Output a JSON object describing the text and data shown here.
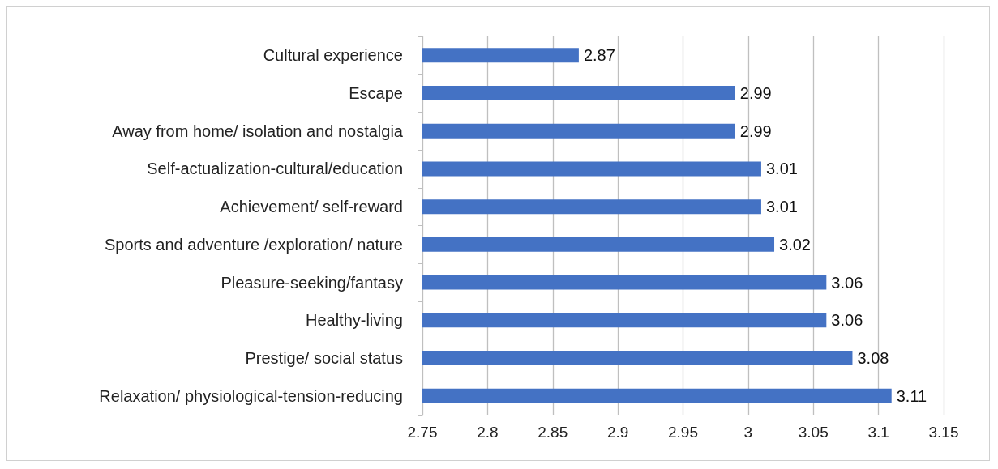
{
  "chart_data": {
    "type": "bar",
    "orientation": "horizontal",
    "categories": [
      "Cultural experience",
      "Escape",
      "Away from home/ isolation and nostalgia",
      "Self-actualization-cultural/education",
      "Achievement/ self-reward",
      "Sports and adventure /exploration/ nature",
      "Pleasure-seeking/fantasy",
      "Healthy-living",
      "Prestige/ social status",
      "Relaxation/ physiological-tension-reducing"
    ],
    "values": [
      2.87,
      2.99,
      2.99,
      3.01,
      3.01,
      3.02,
      3.06,
      3.06,
      3.08,
      3.11
    ],
    "color": "#4472c4",
    "xlim": [
      2.75,
      3.15
    ],
    "xticks": [
      2.75,
      2.8,
      2.85,
      2.9,
      2.95,
      3,
      3.05,
      3.1,
      3.15
    ],
    "grid": "x",
    "data_labels": true
  }
}
